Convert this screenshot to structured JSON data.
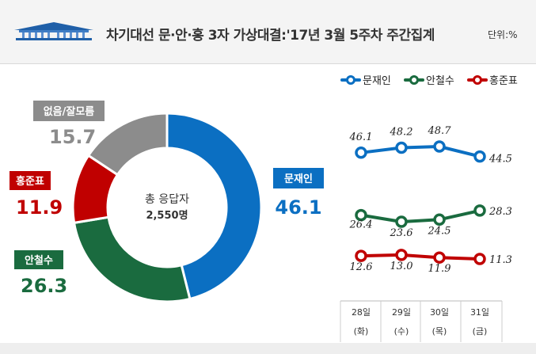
{
  "header": {
    "title": "차기대선 문·안·홍 3자 가상대결:'17년 3월 5주차 주간집계",
    "unit": "단위:%"
  },
  "chart_data": [
    {
      "type": "pie",
      "variant": "donut",
      "center_label": [
        "총 응답자",
        "2,550명"
      ],
      "slices": [
        {
          "label": "문재인",
          "value": 46.1,
          "color": "#0b6fc2"
        },
        {
          "label": "안철수",
          "value": 26.3,
          "color": "#1a6b3f"
        },
        {
          "label": "홍준표",
          "value": 11.9,
          "color": "#c00000"
        },
        {
          "label": "없음/잘모름",
          "value": 15.7,
          "color": "#8c8c8c"
        }
      ]
    },
    {
      "type": "line",
      "categories": [
        [
          "28일",
          "(화)"
        ],
        [
          "29일",
          "(수)"
        ],
        [
          "30일",
          "(목)"
        ],
        [
          "31일",
          "(금)"
        ]
      ],
      "legend_position": "top",
      "series": [
        {
          "name": "문재인",
          "values": [
            46.1,
            48.2,
            48.7,
            44.5
          ],
          "labels": [
            "46.1",
            "48.2",
            "48.7",
            "44.5"
          ],
          "color": "#0b6fc2"
        },
        {
          "name": "안철수",
          "values": [
            26.4,
            23.6,
            24.5,
            28.3
          ],
          "labels": [
            "26.4",
            "23.6",
            "24.5",
            "28.3"
          ],
          "color": "#1a6b3f"
        },
        {
          "name": "홍준표",
          "values": [
            12.6,
            13.0,
            11.9,
            11.3
          ],
          "labels": [
            "12.6",
            "13.0",
            "11.9",
            "11.3"
          ],
          "color": "#c00000"
        }
      ]
    }
  ]
}
